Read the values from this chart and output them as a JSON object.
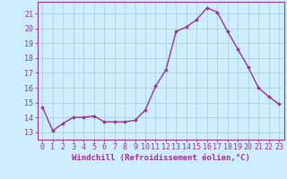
{
  "x": [
    0,
    1,
    2,
    3,
    4,
    5,
    6,
    7,
    8,
    9,
    10,
    11,
    12,
    13,
    14,
    15,
    16,
    17,
    18,
    19,
    20,
    21,
    22,
    23
  ],
  "y": [
    14.7,
    13.1,
    13.6,
    14.0,
    14.0,
    14.1,
    13.7,
    13.7,
    13.7,
    13.8,
    14.5,
    16.1,
    17.2,
    19.8,
    20.1,
    20.6,
    21.4,
    21.1,
    19.8,
    18.6,
    17.4,
    16.0,
    15.4,
    14.9
  ],
  "line_color": "#993399",
  "marker": "D",
  "marker_size": 2.0,
  "line_width": 1.0,
  "xlabel": "Windchill (Refroidissement éolien,°C)",
  "xlim": [
    -0.5,
    23.5
  ],
  "ylim": [
    12.5,
    21.8
  ],
  "yticks": [
    13,
    14,
    15,
    16,
    17,
    18,
    19,
    20,
    21
  ],
  "xticks": [
    0,
    1,
    2,
    3,
    4,
    5,
    6,
    7,
    8,
    9,
    10,
    11,
    12,
    13,
    14,
    15,
    16,
    17,
    18,
    19,
    20,
    21,
    22,
    23
  ],
  "bg_color": "#cceeff",
  "grid_color": "#aacccc",
  "tick_color": "#993399",
  "label_color": "#993399",
  "axis_color": "#993399",
  "xlabel_fontsize": 6.5,
  "tick_fontsize": 6.0
}
